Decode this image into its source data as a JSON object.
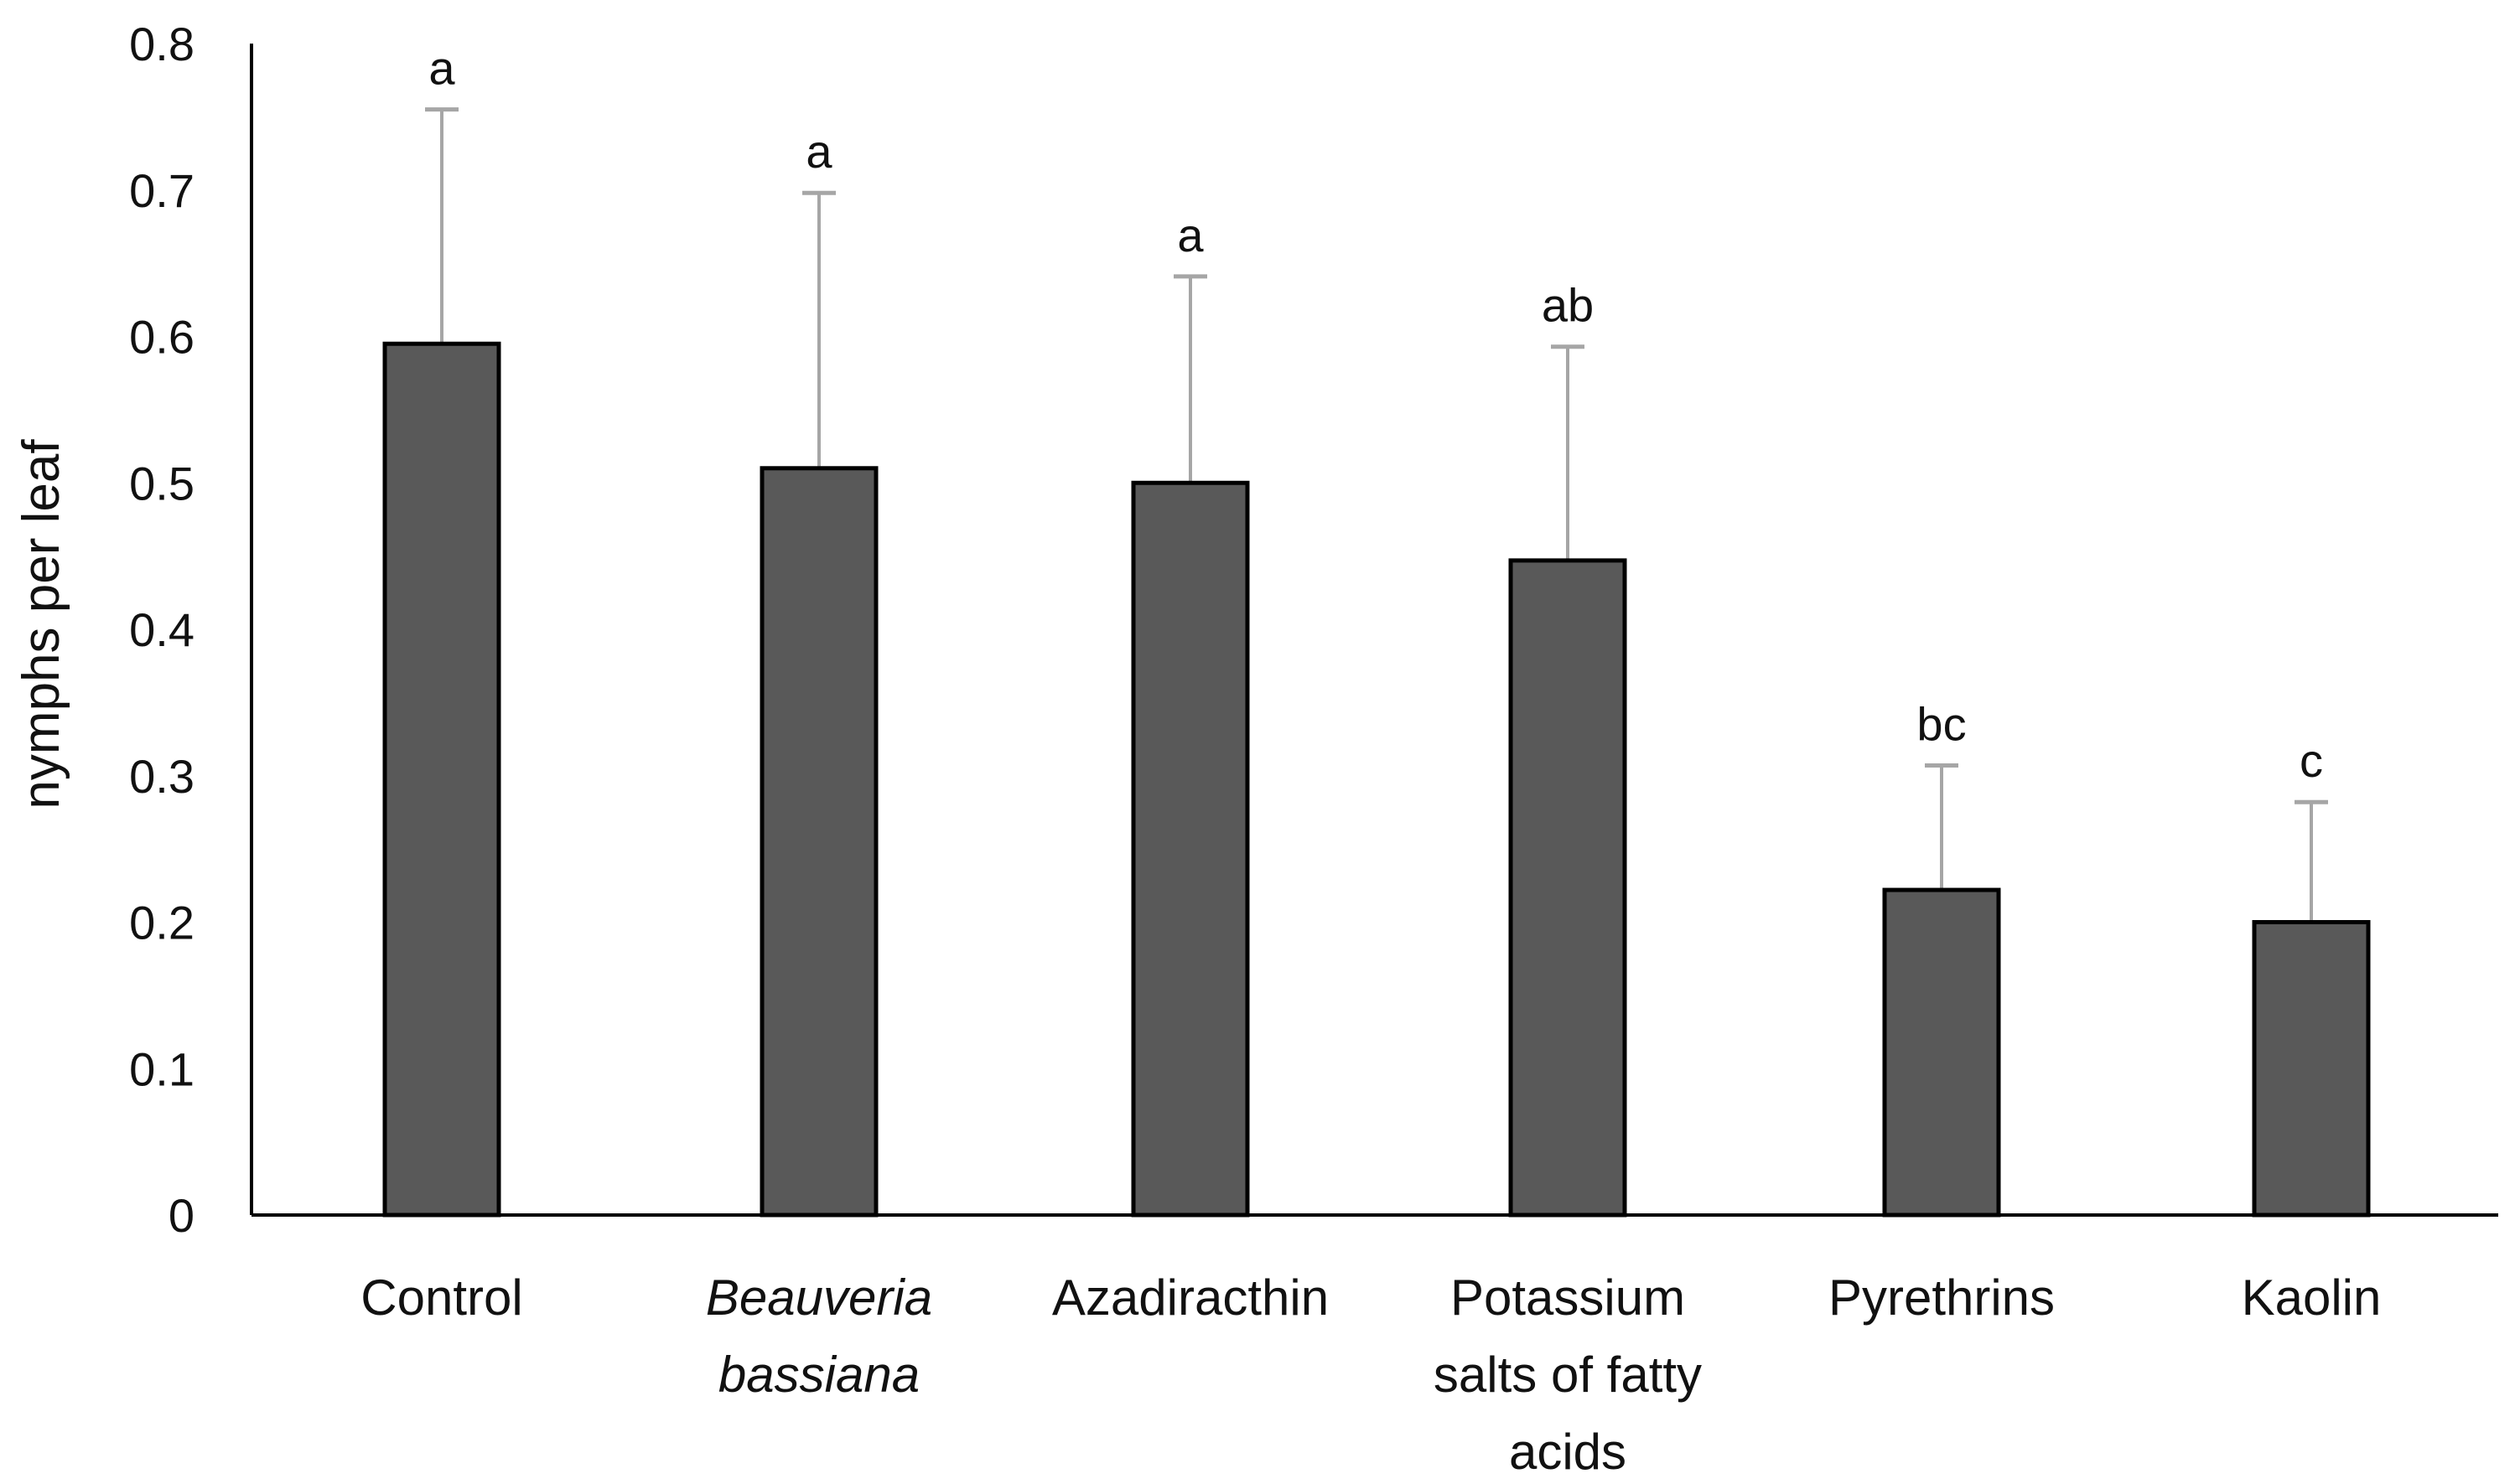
{
  "chart_data": {
    "type": "bar",
    "title": "",
    "xlabel": "",
    "ylabel": "nymphs per leaf",
    "ylim": [
      0,
      0.8
    ],
    "yticks": [
      "0",
      "0.1",
      "0.2",
      "0.3",
      "0.4",
      "0.5",
      "0.6",
      "0.7",
      "0.8"
    ],
    "grid": false,
    "categories": [
      {
        "lines": [
          "Control"
        ],
        "italic": false
      },
      {
        "lines": [
          "Beauveria",
          "bassiana"
        ],
        "italic": true
      },
      {
        "lines": [
          "Azadiracthin"
        ],
        "italic": false
      },
      {
        "lines": [
          "Potassium",
          "salts of fatty",
          "acids"
        ],
        "italic": false
      },
      {
        "lines": [
          "Pyrethrins"
        ],
        "italic": false
      },
      {
        "lines": [
          "Kaolin"
        ],
        "italic": false
      }
    ],
    "values": [
      0.595,
      0.51,
      0.5,
      0.447,
      0.222,
      0.2
    ],
    "error_upper": [
      0.755,
      0.698,
      0.641,
      0.593,
      0.307,
      0.282
    ],
    "significance_letters": [
      "a",
      "a",
      "a",
      "ab",
      "bc",
      "c"
    ],
    "colors": {
      "bar_fill": "#595959",
      "bar_stroke": "#000000",
      "error_bar": "#a6a6a6",
      "axis": "#000000"
    }
  }
}
